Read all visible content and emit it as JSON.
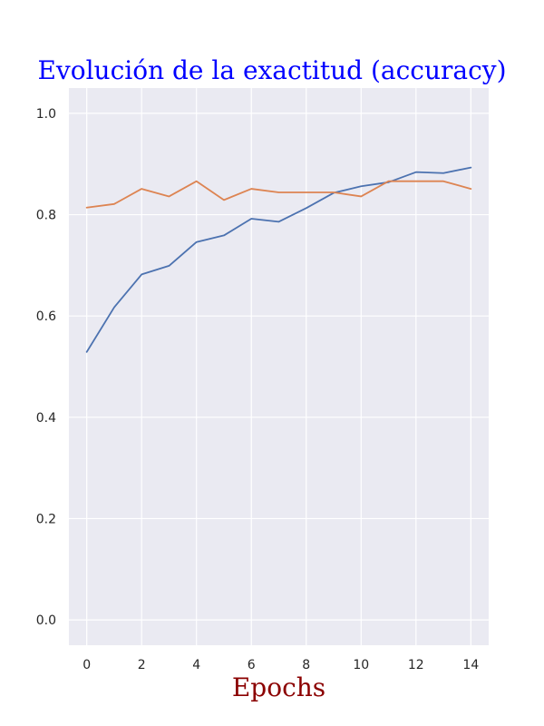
{
  "chart_data": {
    "type": "line",
    "title": "Evolución de la exactitud (accuracy)",
    "xlabel": "Epochs",
    "ylabel": "",
    "x": [
      0,
      1,
      2,
      3,
      4,
      5,
      6,
      7,
      8,
      9,
      10,
      11,
      12,
      13,
      14
    ],
    "xticks": [
      "0",
      "2",
      "4",
      "6",
      "8",
      "10",
      "12",
      "14"
    ],
    "yticks": [
      "0.0",
      "0.2",
      "0.4",
      "0.6",
      "0.8",
      "1.0"
    ],
    "xlim": [
      -0.65,
      14.65
    ],
    "ylim": [
      -0.05,
      1.05
    ],
    "grid": true,
    "series": [
      {
        "color": "#4c72b0",
        "values": [
          0.529,
          0.617,
          0.682,
          0.699,
          0.746,
          0.759,
          0.792,
          0.786,
          0.813,
          0.843,
          0.856,
          0.864,
          0.884,
          0.882,
          0.893
        ]
      },
      {
        "color": "#dd8452",
        "values": [
          0.814,
          0.821,
          0.851,
          0.836,
          0.866,
          0.829,
          0.851,
          0.844,
          0.844,
          0.844,
          0.836,
          0.866,
          0.866,
          0.866,
          0.851
        ]
      }
    ],
    "colors": {
      "title": "#0000ff",
      "xlabel": "#8b0000",
      "background": "#eaeaf2",
      "grid": "#ffffff"
    }
  }
}
